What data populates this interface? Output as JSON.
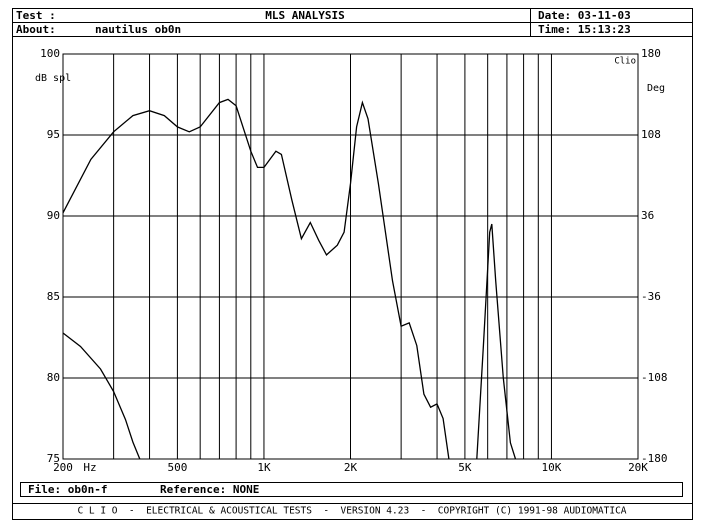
{
  "header": {
    "test_label": "Test :",
    "title": "MLS ANALYSIS",
    "date": "Date: 03-11-03",
    "about_label": "About:",
    "about": "nautilus ob0n",
    "time": "Time: 15:13:23"
  },
  "footer": {
    "file": "File: ob0n-f",
    "reference": "Reference: NONE",
    "credits": "C L I O  -  ELECTRICAL & ACOUSTICAL TESTS  -  VERSION 4.23  -  COPYRIGHT (C) 1991-98 AUDIOMATICA"
  },
  "chart_data": {
    "type": "line",
    "log_x": true,
    "grid": true,
    "color": "#000000",
    "y_label": "dB spl",
    "y2_label": "Deg",
    "x_unit": "Hz",
    "brand": "Clio",
    "xlim": [
      200,
      20000
    ],
    "xticks": [
      200,
      500,
      {
        "value": 1000,
        "label": "1K"
      },
      {
        "value": 2000,
        "label": "2K"
      },
      {
        "value": 5000,
        "label": "5K"
      },
      {
        "value": 10000,
        "label": "10K"
      },
      {
        "value": 20000,
        "label": "20K"
      }
    ],
    "xgrid": [
      300,
      400,
      600,
      700,
      800,
      900,
      3000,
      4000,
      6000,
      7000,
      8000,
      9000
    ],
    "ylim": [
      75,
      100
    ],
    "yticks": [
      75,
      80,
      85,
      90,
      95,
      100
    ],
    "y2lim": [
      -180,
      180
    ],
    "y2ticks": [
      -180,
      -108,
      -36,
      36,
      108,
      180
    ],
    "series": [
      {
        "name": "SPL",
        "color": "#000000",
        "x": [
          200,
          250,
          300,
          350,
          400,
          450,
          500,
          550,
          600,
          700,
          750,
          800,
          900,
          950,
          1000,
          1100,
          1150,
          1250,
          1350,
          1450,
          1550,
          1650,
          1800,
          1900,
          2000,
          2100,
          2200,
          2300,
          2500,
          2800,
          3000,
          3200,
          3400,
          3600,
          3800,
          4000,
          4200,
          4400,
          4700,
          5500,
          5800,
          6100,
          6200,
          6400,
          6800,
          7200,
          7500
        ],
        "values": [
          90.2,
          93.5,
          95.2,
          96.2,
          96.5,
          96.2,
          95.5,
          95.2,
          95.5,
          97.0,
          97.2,
          96.8,
          94.0,
          93.0,
          93.0,
          94.0,
          93.8,
          91.0,
          88.6,
          89.6,
          88.5,
          87.6,
          88.2,
          89.0,
          92.0,
          95.5,
          97.0,
          96.0,
          92.0,
          86.0,
          83.2,
          83.4,
          82.0,
          79.0,
          78.2,
          78.4,
          77.5,
          75.0,
          null,
          75.0,
          82.0,
          89.0,
          89.5,
          86.0,
          80.0,
          76.0,
          75.0
        ]
      },
      {
        "name": "Phase",
        "color": "#000000",
        "axis": "y2",
        "x": [
          200,
          230,
          270,
          300,
          330,
          350,
          370
        ],
        "values": [
          -68,
          -80,
          -100,
          -120,
          -145,
          -165,
          -180
        ]
      }
    ]
  }
}
